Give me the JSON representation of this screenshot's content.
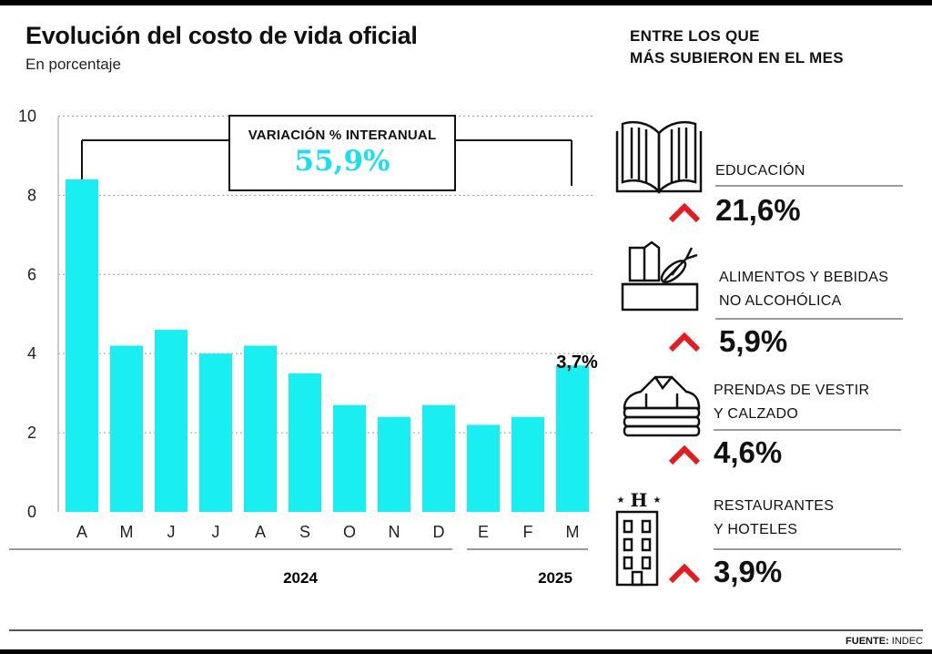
{
  "header": {
    "title": "Evolución del costo de vida oficial",
    "subtitle": "En porcentaje"
  },
  "interannual": {
    "label": "VARIACIÓN % INTERANUAL",
    "value": "55,9%"
  },
  "chart_data": {
    "type": "bar",
    "categories": [
      "A",
      "M",
      "J",
      "J",
      "A",
      "S",
      "O",
      "N",
      "D",
      "E",
      "F",
      "M"
    ],
    "values": [
      8.4,
      4.2,
      4.6,
      4.0,
      4.2,
      3.5,
      2.7,
      2.4,
      2.7,
      2.2,
      2.4,
      3.7
    ],
    "highlight_label": "3,7%",
    "y_ticks": [
      0,
      2,
      4,
      6,
      8,
      10
    ],
    "ylim": [
      0,
      11
    ],
    "years": [
      {
        "label": "2024"
      },
      {
        "label": "2025"
      }
    ],
    "bar_color": "#19eef0",
    "grid": true
  },
  "sidebar": {
    "title_line1": "ENTRE LOS QUE",
    "title_line2": "MÁS SUBIERON EN EL MES",
    "items": [
      {
        "line1": "EDUCACIÓN",
        "line2": "",
        "value": "21,6%",
        "icon": "book-icon"
      },
      {
        "line1": "ALIMENTOS Y BEBIDAS",
        "line2": "NO ALCOHÓLICA",
        "value": "5,9%",
        "icon": "grocery-box-icon"
      },
      {
        "line1": "PRENDAS DE VESTIR",
        "line2": "Y CALZADO",
        "value": "4,6%",
        "icon": "folded-clothes-icon"
      },
      {
        "line1": "RESTAURANTES",
        "line2": "Y HOTELES",
        "value": "3,9%",
        "icon": "hotel-icon"
      }
    ],
    "arrow_color": "#e8191f"
  },
  "footer": {
    "source_label": "FUENTE:",
    "source_value": "INDEC"
  }
}
